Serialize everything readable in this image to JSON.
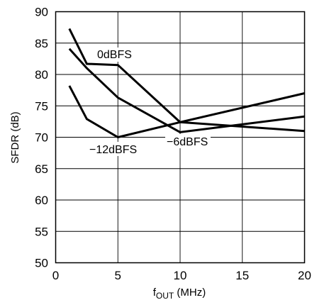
{
  "chart_data": {
    "type": "line",
    "xlabel_main": "f",
    "xlabel_sub": "OUT",
    "xlabel_unit": " (MHz)",
    "ylabel": "SFDR (dB)",
    "xlim": [
      0,
      20
    ],
    "ylim": [
      50,
      90
    ],
    "x_ticks": [
      "0",
      "5",
      "10",
      "15",
      "20"
    ],
    "y_ticks": [
      "50",
      "55",
      "60",
      "65",
      "70",
      "75",
      "80",
      "85",
      "90"
    ],
    "grid": true,
    "series": [
      {
        "name": "0dBFS",
        "x": [
          1.1,
          2.5,
          5,
          10,
          20
        ],
        "y": [
          87.3,
          81.7,
          81.5,
          72.4,
          71.0
        ]
      },
      {
        "name": "-6dBFS",
        "x": [
          1.1,
          2.5,
          5,
          10,
          20
        ],
        "y": [
          84.1,
          81.0,
          76.3,
          70.8,
          73.3
        ]
      },
      {
        "name": "-12dBFS",
        "x": [
          1.1,
          2.5,
          5,
          10,
          20
        ],
        "y": [
          78.2,
          72.9,
          70.0,
          72.4,
          77.0
        ]
      }
    ],
    "annotations": [
      {
        "text": "0dBFS"
      },
      {
        "text": "−6dBFS"
      },
      {
        "text": "−12dBFS"
      }
    ]
  }
}
